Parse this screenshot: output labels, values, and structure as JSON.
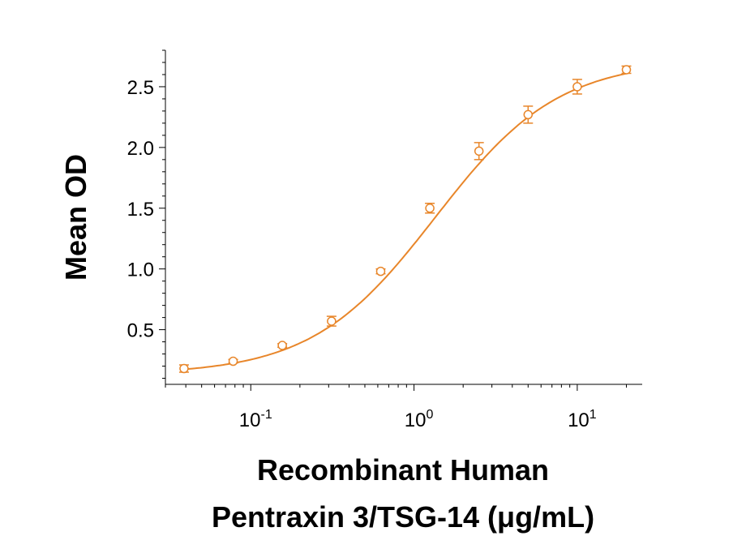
{
  "chart_data": {
    "type": "scatter",
    "x_scale": "log",
    "y_scale": "linear",
    "ylabel": "Mean OD",
    "xlabel_lines": [
      "Recombinant Human",
      "Pentraxin 3/TSG-14 (μg/mL)"
    ],
    "xlim": [
      0.03,
      25
    ],
    "ylim": [
      0.05,
      2.8
    ],
    "y_ticks": [
      {
        "value": 0.5,
        "label": "0.5"
      },
      {
        "value": 1.0,
        "label": "1.0"
      },
      {
        "value": 1.5,
        "label": "1.5"
      },
      {
        "value": 2.0,
        "label": "2.0"
      },
      {
        "value": 2.5,
        "label": "2.5"
      }
    ],
    "x_ticks": [
      {
        "value": 0.1,
        "base": "10",
        "exp": "-1"
      },
      {
        "value": 1,
        "base": "10",
        "exp": "0"
      },
      {
        "value": 10,
        "base": "10",
        "exp": "1"
      }
    ],
    "series": [
      {
        "name": "Pentraxin 3/TSG-14",
        "color": "#E8862A",
        "marker": "open-circle",
        "points": [
          {
            "x": 0.039,
            "y": 0.18,
            "err": 0.03
          },
          {
            "x": 0.078,
            "y": 0.24,
            "err": 0.015
          },
          {
            "x": 0.156,
            "y": 0.37,
            "err": 0.015
          },
          {
            "x": 0.3125,
            "y": 0.57,
            "err": 0.04
          },
          {
            "x": 0.625,
            "y": 0.98,
            "err": 0.02
          },
          {
            "x": 1.25,
            "y": 1.5,
            "err": 0.04
          },
          {
            "x": 2.5,
            "y": 1.97,
            "err": 0.07
          },
          {
            "x": 5,
            "y": 2.27,
            "err": 0.07
          },
          {
            "x": 10,
            "y": 2.5,
            "err": 0.06
          },
          {
            "x": 20,
            "y": 2.64,
            "err": 0.03
          }
        ],
        "fit": {
          "model": "4PL",
          "bottom": 0.13,
          "top": 2.72,
          "ec50": 1.35,
          "hill": 1.15
        }
      }
    ]
  }
}
